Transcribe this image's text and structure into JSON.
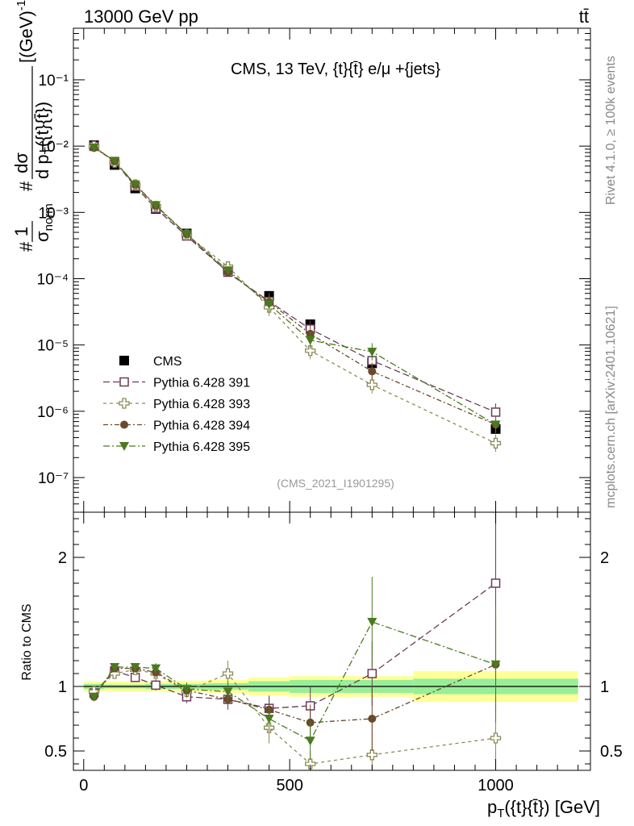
{
  "header": {
    "left": "13000 GeV pp",
    "right": "tt̄"
  },
  "side": {
    "rivet": "Rivet 4.1.0, ≥ 100k events",
    "mcplots": "mcplots.cern.ch [arXiv:2401.10621]"
  },
  "chart_data": [
    {
      "id": "main",
      "type": "scatter",
      "title": "CMS, 13 TeV, {t}{t̄} e/μ +{jets}",
      "watermark": "(CMS_2021_I1901295)",
      "ylabel": "# 1/σnorm # dσ / d pT({t}{t̄}) [(GeV)⁻¹]",
      "yscale": "log",
      "ylim": [
        3e-08,
        0.6
      ],
      "xlim": [
        -25,
        1230
      ],
      "ytick_labels": [
        "10⁻⁷",
        "10⁻⁶",
        "10⁻⁵",
        "10⁻⁴",
        "10⁻³",
        "10⁻²",
        "10⁻¹"
      ],
      "x": [
        25,
        75,
        125,
        175,
        250,
        350,
        450,
        550,
        700,
        1000
      ],
      "series": [
        {
          "name": "CMS",
          "marker": "square-filled",
          "color": "#000000",
          "values": [
            0.0103,
            0.0052,
            0.0023,
            0.00113,
            0.00048,
            0.000138,
            5.5e-05,
            2.05e-05,
            5.3e-06,
            5.4e-07
          ]
        },
        {
          "name": "Pythia 6.428 391",
          "marker": "square-open",
          "color": "#6b3b5a",
          "values": [
            0.0099,
            0.0058,
            0.00247,
            0.00115,
            0.00044,
            0.000125,
            4.55e-05,
            1.74e-05,
            5.8e-06,
            9.7e-07
          ]
        },
        {
          "name": "Pythia 6.428 393",
          "marker": "cross-open",
          "color": "#8c8a55",
          "values": [
            0.0099,
            0.0057,
            0.00261,
            0.00124,
            0.00046,
            0.000152,
            3.7e-05,
            8.2e-06,
            2.5e-06,
            3.3e-07
          ]
        },
        {
          "name": "Pythia 6.428 394",
          "marker": "circle-filled",
          "color": "#6b4a2b",
          "values": [
            0.0095,
            0.0059,
            0.00262,
            0.00125,
            0.00047,
            0.000124,
            4.45e-05,
            1.47e-05,
            4e-06,
            6.3e-07
          ]
        },
        {
          "name": "Pythia 6.428 395",
          "marker": "triangle-down-filled",
          "color": "#4a7a1e",
          "values": [
            0.0095,
            0.006,
            0.00264,
            0.00128,
            0.00047,
            0.000133,
            4.1e-05,
            1.18e-05,
            7.9e-06,
            6.3e-07
          ]
        }
      ]
    },
    {
      "id": "ratio",
      "type": "scatter",
      "ylabel": "Ratio to CMS",
      "xlabel": "pT({t}{t̄}) [GeV]",
      "ylim": [
        0.35,
        2.35
      ],
      "yticks": [
        0.5,
        1,
        2
      ],
      "ytick_labels": [
        "0.5",
        "1",
        "2"
      ],
      "xticks": [
        0,
        500,
        1000
      ],
      "xtick_labels": [
        "0",
        "500",
        "1000"
      ],
      "bands": [
        {
          "x": [
            0,
            50
          ],
          "stat": [
            0.98,
            1.02
          ],
          "total": [
            0.96,
            1.04
          ]
        },
        {
          "x": [
            50,
            100
          ],
          "stat": [
            0.985,
            1.015
          ],
          "total": [
            0.96,
            1.04
          ]
        },
        {
          "x": [
            100,
            150
          ],
          "stat": [
            0.985,
            1.015
          ],
          "total": [
            0.96,
            1.04
          ]
        },
        {
          "x": [
            150,
            200
          ],
          "stat": [
            0.98,
            1.02
          ],
          "total": [
            0.96,
            1.04
          ]
        },
        {
          "x": [
            200,
            300
          ],
          "stat": [
            0.98,
            1.02
          ],
          "total": [
            0.955,
            1.045
          ]
        },
        {
          "x": [
            300,
            400
          ],
          "stat": [
            0.975,
            1.025
          ],
          "total": [
            0.95,
            1.05
          ]
        },
        {
          "x": [
            400,
            500
          ],
          "stat": [
            0.96,
            1.04
          ],
          "total": [
            0.93,
            1.07
          ]
        },
        {
          "x": [
            500,
            600
          ],
          "stat": [
            0.95,
            1.05
          ],
          "total": [
            0.92,
            1.08
          ]
        },
        {
          "x": [
            600,
            800
          ],
          "stat": [
            0.95,
            1.05
          ],
          "total": [
            0.92,
            1.08
          ]
        },
        {
          "x": [
            800,
            1200
          ],
          "stat": [
            0.94,
            1.06
          ],
          "total": [
            0.88,
            1.12
          ]
        }
      ],
      "x": [
        25,
        75,
        125,
        175,
        250,
        350,
        450,
        550,
        700,
        1000
      ],
      "series": [
        {
          "name": "Pythia 6.428 391",
          "values": [
            0.95,
            1.12,
            1.07,
            1.01,
            0.92,
            0.9,
            0.83,
            0.85,
            1.1,
            1.8
          ],
          "err": [
            0.02,
            0.03,
            0.03,
            0.04,
            0.05,
            0.08,
            0.1,
            0.15,
            0.25,
            0.6
          ]
        },
        {
          "name": "Pythia 6.428 393",
          "values": [
            0.96,
            1.1,
            1.13,
            1.1,
            0.96,
            1.1,
            0.68,
            0.4,
            0.47,
            0.6
          ],
          "err": [
            0.02,
            0.03,
            0.04,
            0.05,
            0.05,
            0.1,
            0.12,
            0.1,
            0.3,
            0.35
          ]
        },
        {
          "name": "Pythia 6.428 394",
          "values": [
            0.92,
            1.14,
            1.14,
            1.11,
            0.97,
            0.9,
            0.82,
            0.72,
            0.75,
            1.17
          ],
          "err": [
            0.02,
            0.03,
            0.03,
            0.04,
            0.05,
            0.07,
            0.1,
            0.14,
            0.25,
            0.4
          ]
        },
        {
          "name": "Pythia 6.428 395",
          "values": [
            0.92,
            1.15,
            1.15,
            1.14,
            0.98,
            0.96,
            0.75,
            0.58,
            1.5,
            1.17
          ],
          "err": [
            0.02,
            0.03,
            0.03,
            0.04,
            0.05,
            0.08,
            0.1,
            0.15,
            0.35,
            0.45
          ]
        }
      ]
    }
  ]
}
